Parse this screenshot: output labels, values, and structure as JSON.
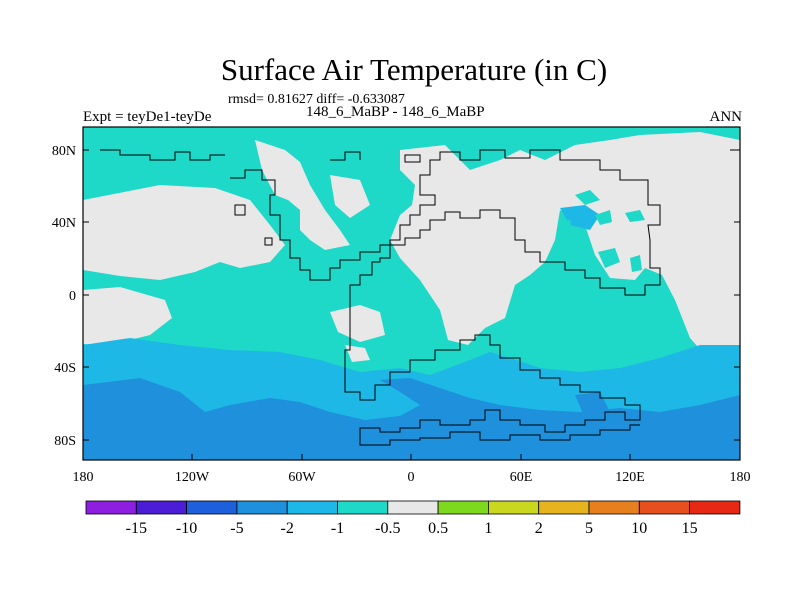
{
  "header": {
    "title": "Surface Air Temperature (in C)",
    "rmsd_line": "rmsd= 0.81627 diff= -0.633087",
    "subtitle": "148_6_MaBP - 148_6_MaBP",
    "left_label": "Expt = teyDe1-teyDe",
    "right_label": "ANN"
  },
  "map": {
    "lat_ticks": [
      "80N",
      "40N",
      "0",
      "40S",
      "80S"
    ],
    "lon_ticks": [
      "180",
      "120W",
      "60W",
      "0",
      "60E",
      "120E",
      "180"
    ],
    "projection": "cylindrical equidistant",
    "lon_range": [
      -180,
      180
    ],
    "lat_range": [
      -90,
      90
    ]
  },
  "colorbar": {
    "labels": [
      "-15",
      "-10",
      "-5",
      "-2",
      "-1",
      "-0.5",
      "0.5",
      "1",
      "2",
      "5",
      "10",
      "15"
    ],
    "colors": [
      "#8e1ee0",
      "#4a1ed6",
      "#1e60dc",
      "#1e90dc",
      "#1eb8e6",
      "#1ed8c8",
      "#e8e8e8",
      "#7ed81e",
      "#c8d81e",
      "#e6b41e",
      "#e6801e",
      "#e6501e",
      "#e62814"
    ]
  },
  "colors": {
    "neutral": "#e8e8e8",
    "cool_1": "#1ed8c8",
    "cool_2": "#1eb8e6",
    "cool_3": "#1e90dc"
  }
}
